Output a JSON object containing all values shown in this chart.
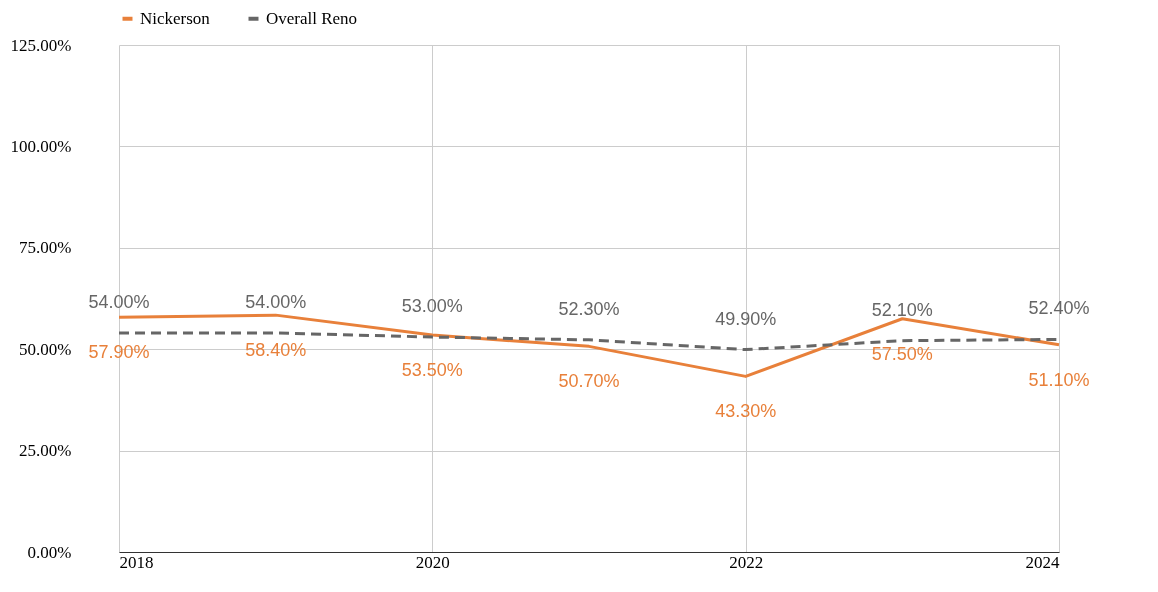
{
  "chart_data": {
    "type": "line",
    "x": [
      2018,
      2019,
      2020,
      2021,
      2022,
      2023,
      2024
    ],
    "series": [
      {
        "name": "Nickerson",
        "color": "#e8803a",
        "line_style": "solid",
        "values": [
          57.9,
          58.4,
          53.5,
          50.7,
          43.3,
          57.5,
          51.1
        ],
        "value_labels": [
          "57.90%",
          "58.40%",
          "53.50%",
          "50.70%",
          "43.30%",
          "57.50%",
          "51.10%"
        ]
      },
      {
        "name": "Overall Reno",
        "color": "#666666",
        "line_style": "dashed",
        "values": [
          54.0,
          54.0,
          53.0,
          52.3,
          49.9,
          52.1,
          52.4
        ],
        "value_labels": [
          "54.00%",
          "54.00%",
          "53.00%",
          "52.30%",
          "49.90%",
          "52.10%",
          "52.40%"
        ]
      }
    ],
    "xlim": [
      2018,
      2024
    ],
    "xticks": [
      2018,
      2020,
      2022,
      2024
    ],
    "ylim": [
      0,
      125
    ],
    "yticks": [
      {
        "value": 0,
        "label": "0.00%"
      },
      {
        "value": 25,
        "label": "25.00%"
      },
      {
        "value": 50,
        "label": "50.00%"
      },
      {
        "value": 75,
        "label": "75.00%"
      },
      {
        "value": 100,
        "label": "100.00%"
      },
      {
        "value": 125,
        "label": "125.00%"
      }
    ],
    "grid": true,
    "legend": "top",
    "marker": "none"
  }
}
